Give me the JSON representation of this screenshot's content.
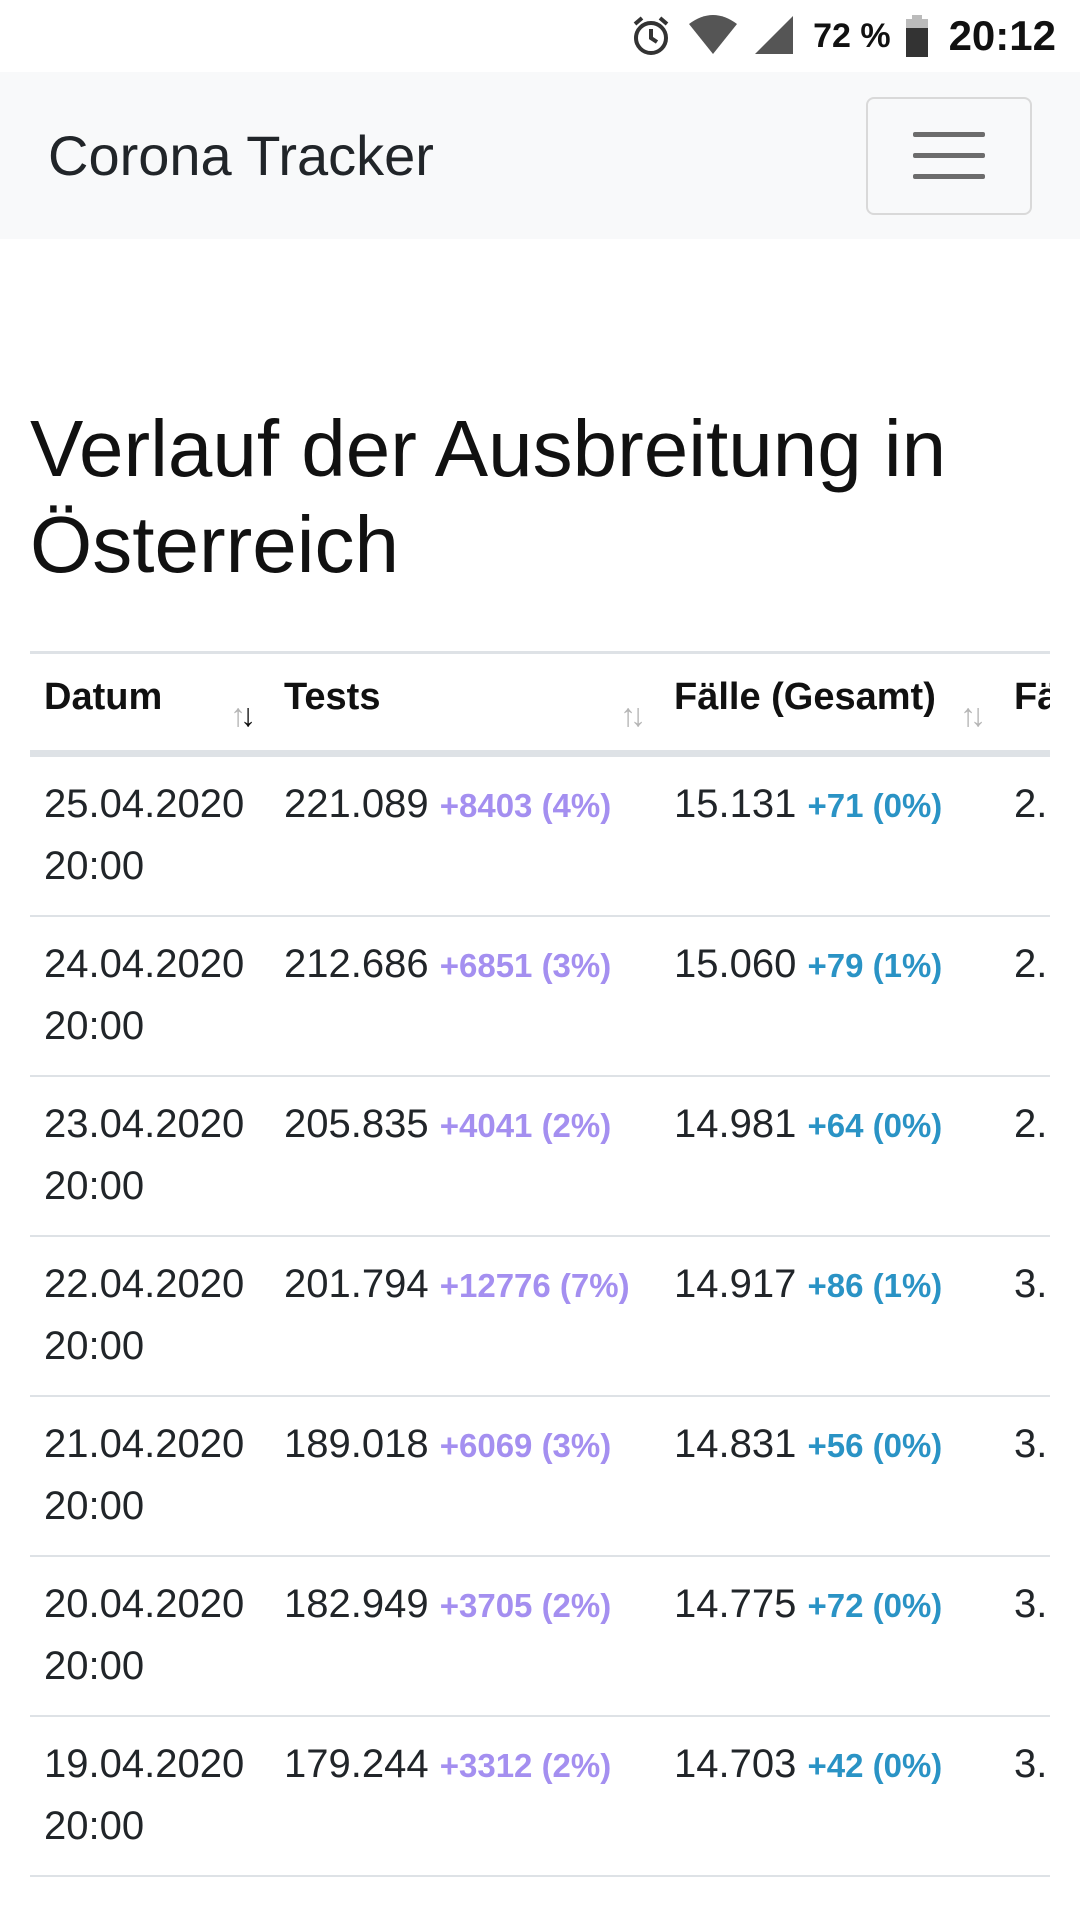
{
  "status_bar": {
    "battery_percent": "72 %",
    "time": "20:12",
    "icons": [
      "alarm-icon",
      "wifi-icon",
      "cell-signal-icon",
      "battery-icon"
    ]
  },
  "navbar": {
    "brand": "Corona Tracker",
    "menu_icon": "hamburger-icon"
  },
  "page": {
    "title": "Verlauf der Ausbreitung in Österreich"
  },
  "table": {
    "headers": {
      "date": "Datum",
      "tests": "Tests",
      "cases": "Fälle (Gesamt)",
      "next": "Fä"
    },
    "rows": [
      {
        "date": "25.04.2020 20:00",
        "tests": "221.089",
        "tests_delta": "+8403 (4%)",
        "cases": "15.131",
        "cases_delta": "+71 (0%)",
        "next": "2."
      },
      {
        "date": "24.04.2020 20:00",
        "tests": "212.686",
        "tests_delta": "+6851 (3%)",
        "cases": "15.060",
        "cases_delta": "+79 (1%)",
        "next": "2."
      },
      {
        "date": "23.04.2020 20:00",
        "tests": "205.835",
        "tests_delta": "+4041 (2%)",
        "cases": "14.981",
        "cases_delta": "+64 (0%)",
        "next": "2."
      },
      {
        "date": "22.04.2020 20:00",
        "tests": "201.794",
        "tests_delta": "+12776 (7%)",
        "cases": "14.917",
        "cases_delta": "+86 (1%)",
        "next": "3."
      },
      {
        "date": "21.04.2020 20:00",
        "tests": "189.018",
        "tests_delta": "+6069 (3%)",
        "cases": "14.831",
        "cases_delta": "+56 (0%)",
        "next": "3."
      },
      {
        "date": "20.04.2020 20:00",
        "tests": "182.949",
        "tests_delta": "+3705 (2%)",
        "cases": "14.775",
        "cases_delta": "+72 (0%)",
        "next": "3."
      },
      {
        "date": "19.04.2020 20:00",
        "tests": "179.244",
        "tests_delta": "+3312 (2%)",
        "cases": "14.703",
        "cases_delta": "+42 (0%)",
        "next": "3."
      }
    ]
  },
  "colors": {
    "tests_delta": "#a48ff0",
    "cases_delta": "#2a93c5",
    "navbar_bg": "#f8f9fa"
  }
}
